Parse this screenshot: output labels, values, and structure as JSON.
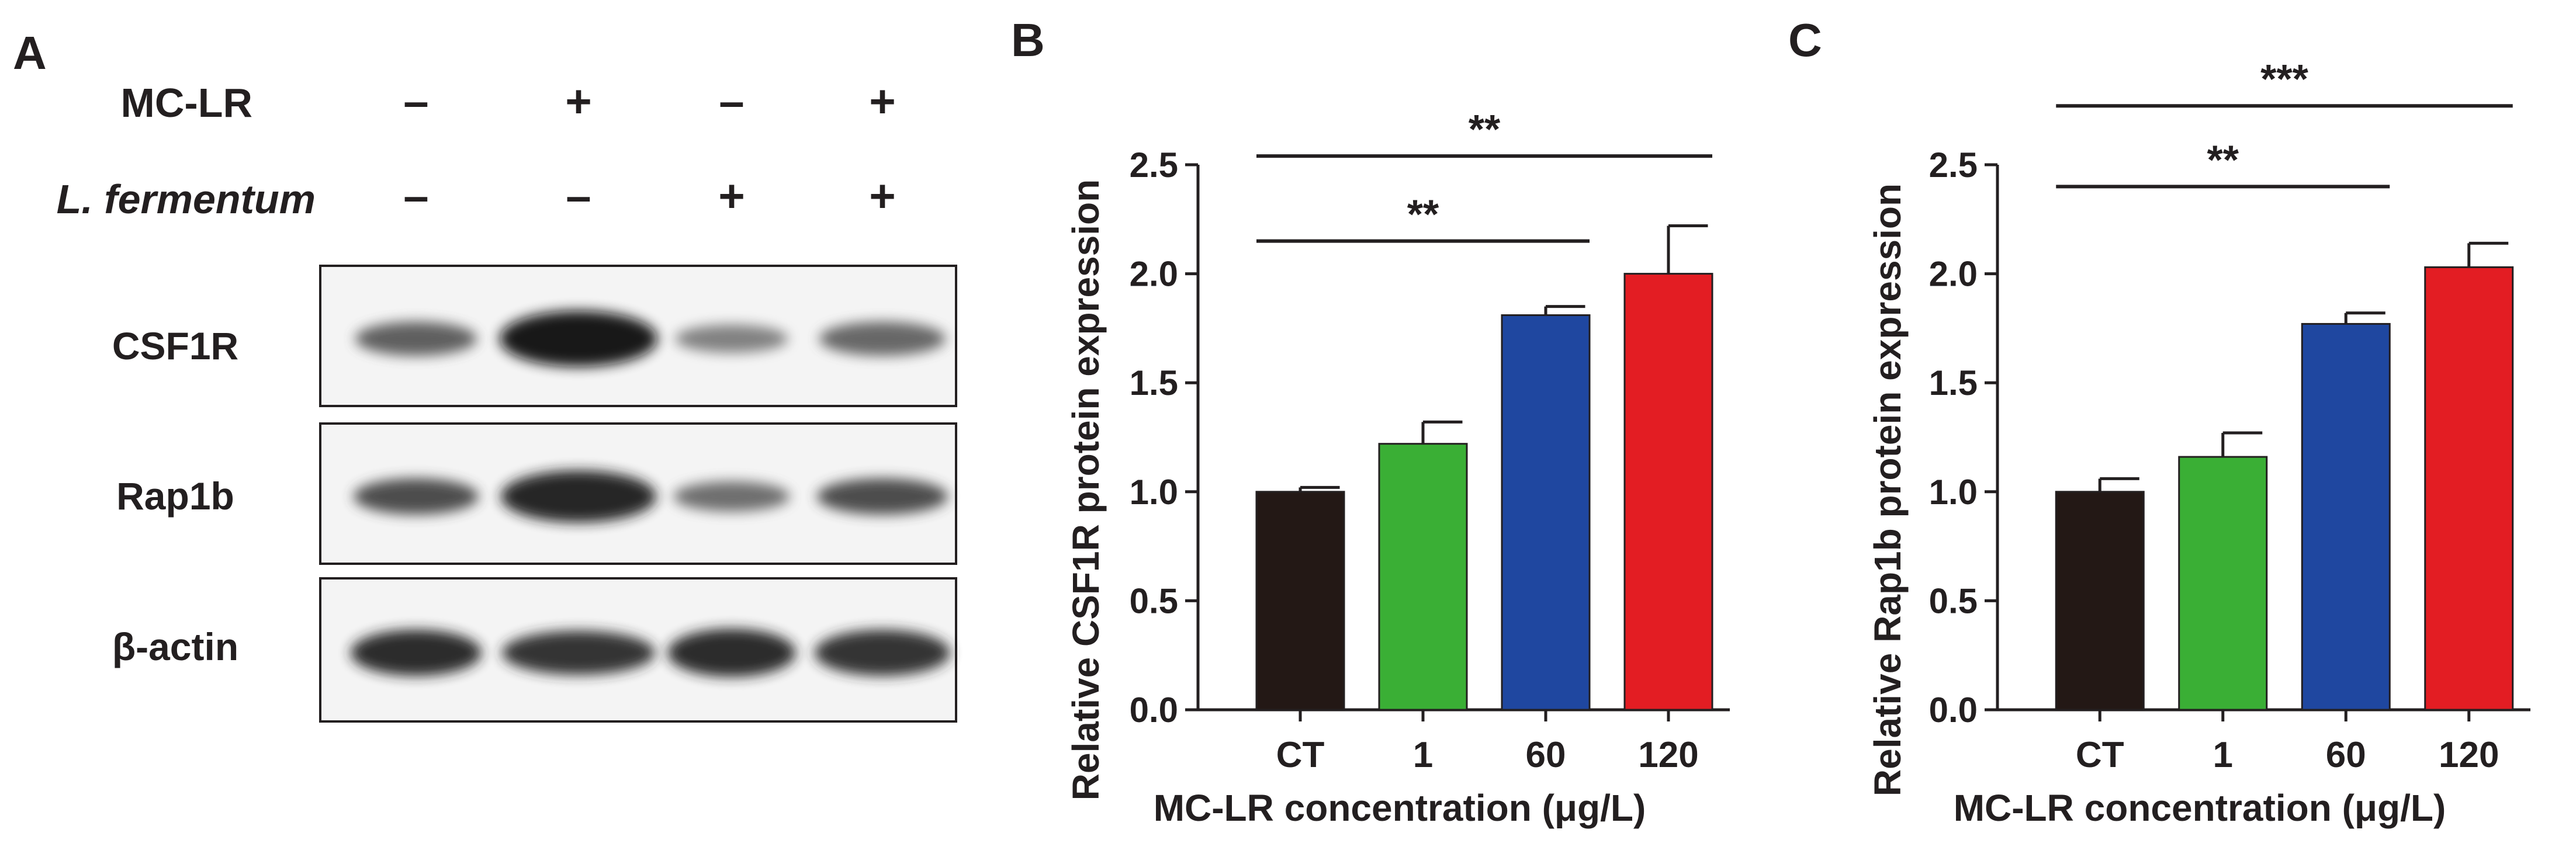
{
  "panel_a": {
    "letter": "A",
    "treatments": [
      {
        "label": "MC-LR",
        "italic": false,
        "marks": [
          "–",
          "+",
          "–",
          "+"
        ]
      },
      {
        "label": "L. fermentum",
        "italic": true,
        "marks": [
          "–",
          "–",
          "+",
          "+"
        ]
      }
    ],
    "blots": [
      {
        "label": "CSF1R",
        "band_intensity": [
          0.45,
          1.0,
          0.2,
          0.4
        ],
        "band_thickness": [
          0.45,
          1.0,
          0.3,
          0.45
        ]
      },
      {
        "label": "Rap1b",
        "band_intensity": [
          0.6,
          0.9,
          0.35,
          0.6
        ],
        "band_thickness": [
          0.5,
          0.9,
          0.35,
          0.5
        ]
      },
      {
        "label": "β-actin",
        "band_intensity": [
          0.85,
          0.8,
          0.85,
          0.8
        ],
        "band_thickness": [
          0.75,
          0.7,
          0.8,
          0.75
        ]
      }
    ]
  },
  "chart_data": [
    {
      "panel": "B",
      "type": "bar",
      "categories": [
        "CT",
        "1",
        "60",
        "120"
      ],
      "values": [
        1.0,
        1.22,
        1.81,
        2.0
      ],
      "errors": [
        0.02,
        0.1,
        0.04,
        0.22
      ],
      "colors": [
        "#231815",
        "#3aaf35",
        "#1f47a0",
        "#e31d23"
      ],
      "xlabel": "MC-LR concentration (μg/L)",
      "ylabel": "Relative CSF1R protein expression",
      "ylim": [
        0,
        2.5
      ],
      "yticks": [
        "0.0",
        "0.5",
        "1.0",
        "1.5",
        "2.0",
        "2.5"
      ],
      "significance": [
        {
          "from": "CT",
          "to": "60",
          "label": "**",
          "level": 2.15
        },
        {
          "from": "CT",
          "to": "120",
          "label": "**",
          "level": 2.54
        }
      ]
    },
    {
      "panel": "C",
      "type": "bar",
      "categories": [
        "CT",
        "1",
        "60",
        "120"
      ],
      "values": [
        1.0,
        1.16,
        1.77,
        2.03
      ],
      "errors": [
        0.06,
        0.11,
        0.05,
        0.11
      ],
      "colors": [
        "#231815",
        "#3aaf35",
        "#1f47a0",
        "#e31d23"
      ],
      "xlabel": "MC-LR concentration (μg/L)",
      "ylabel": "Relative Rap1b protein expression",
      "ylim": [
        0,
        2.5
      ],
      "yticks": [
        "0.0",
        "0.5",
        "1.0",
        "1.5",
        "2.0",
        "2.5"
      ],
      "significance": [
        {
          "from": "CT",
          "to": "60",
          "label": "**",
          "level": 2.4
        },
        {
          "from": "CT",
          "to": "120",
          "label": "***",
          "level": 2.77
        }
      ]
    }
  ]
}
